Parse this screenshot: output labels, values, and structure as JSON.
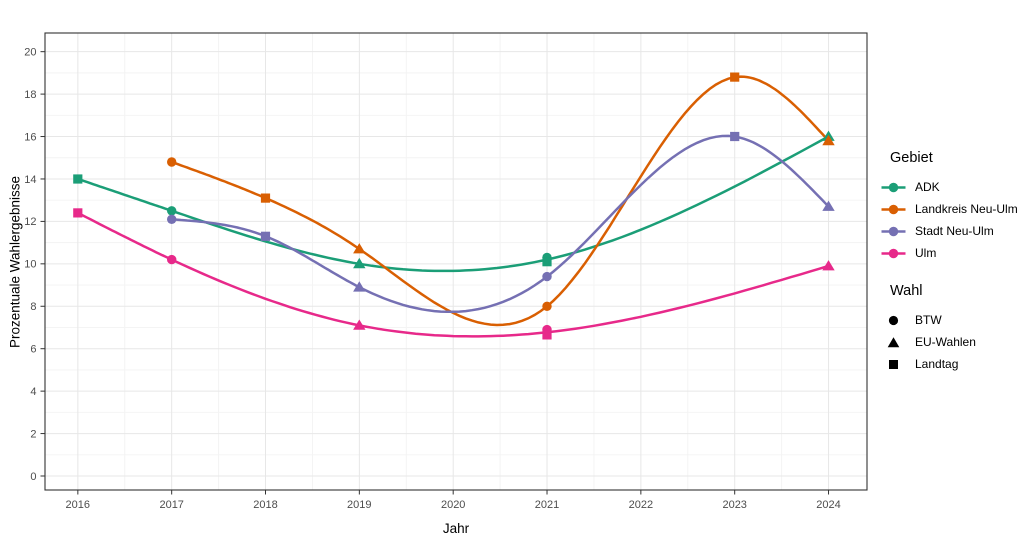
{
  "chart_data": {
    "type": "line",
    "title": "",
    "xlabel": "Jahr",
    "ylabel": "Prozentuale Wahlergebnisse",
    "x_ticks": [
      2016,
      2017,
      2018,
      2019,
      2020,
      2021,
      2022,
      2023,
      2024
    ],
    "y_ticks": [
      0,
      2,
      4,
      6,
      8,
      10,
      12,
      14,
      16,
      18,
      20
    ],
    "xlim": [
      2015.65,
      2024.41
    ],
    "ylim": [
      -0.66,
      20.88
    ],
    "grid": "major+minor",
    "line_style": "smooth-spline",
    "legend_position": "right",
    "panel_border_color": "#333333",
    "gridline_color_major": "#e7e7e7",
    "gridline_color_minor": "#f3f3f3",
    "legend": {
      "color_title": "Gebiet",
      "shape_title": "Wahl",
      "shapes": [
        {
          "label": "BTW",
          "shape": "circle"
        },
        {
          "label": "EU-Wahlen",
          "shape": "triangle"
        },
        {
          "label": "Landtag",
          "shape": "square"
        }
      ]
    },
    "series": [
      {
        "name": "ADK",
        "color": "#1B9E77",
        "points": [
          {
            "year": 2016,
            "value": 14.0,
            "shape": "square"
          },
          {
            "year": 2017,
            "value": 12.5,
            "shape": "circle"
          },
          {
            "year": 2019,
            "value": 10.0,
            "shape": "triangle"
          },
          {
            "year": 2021,
            "value": 10.3,
            "shape": "circle"
          },
          {
            "year": 2021,
            "value": 10.1,
            "shape": "square"
          },
          {
            "year": 2024,
            "value": 16.0,
            "shape": "triangle"
          }
        ]
      },
      {
        "name": "Landkreis Neu-Ulm",
        "color": "#D95F02",
        "points": [
          {
            "year": 2017,
            "value": 14.8,
            "shape": "circle"
          },
          {
            "year": 2018,
            "value": 13.1,
            "shape": "square"
          },
          {
            "year": 2019,
            "value": 10.7,
            "shape": "triangle"
          },
          {
            "year": 2021,
            "value": 8.0,
            "shape": "circle"
          },
          {
            "year": 2023,
            "value": 18.8,
            "shape": "square"
          },
          {
            "year": 2024,
            "value": 15.8,
            "shape": "triangle"
          }
        ]
      },
      {
        "name": "Stadt Neu-Ulm",
        "color": "#7570B3",
        "points": [
          {
            "year": 2017,
            "value": 12.1,
            "shape": "circle"
          },
          {
            "year": 2018,
            "value": 11.3,
            "shape": "square"
          },
          {
            "year": 2019,
            "value": 8.9,
            "shape": "triangle"
          },
          {
            "year": 2021,
            "value": 9.4,
            "shape": "circle"
          },
          {
            "year": 2023,
            "value": 16.0,
            "shape": "square"
          },
          {
            "year": 2024,
            "value": 12.7,
            "shape": "triangle"
          }
        ]
      },
      {
        "name": "Ulm",
        "color": "#E7298A",
        "points": [
          {
            "year": 2016,
            "value": 12.4,
            "shape": "square"
          },
          {
            "year": 2017,
            "value": 10.2,
            "shape": "circle"
          },
          {
            "year": 2019,
            "value": 7.1,
            "shape": "triangle"
          },
          {
            "year": 2021,
            "value": 6.9,
            "shape": "circle"
          },
          {
            "year": 2021,
            "value": 6.65,
            "shape": "square"
          },
          {
            "year": 2024,
            "value": 9.9,
            "shape": "triangle"
          }
        ]
      }
    ]
  }
}
